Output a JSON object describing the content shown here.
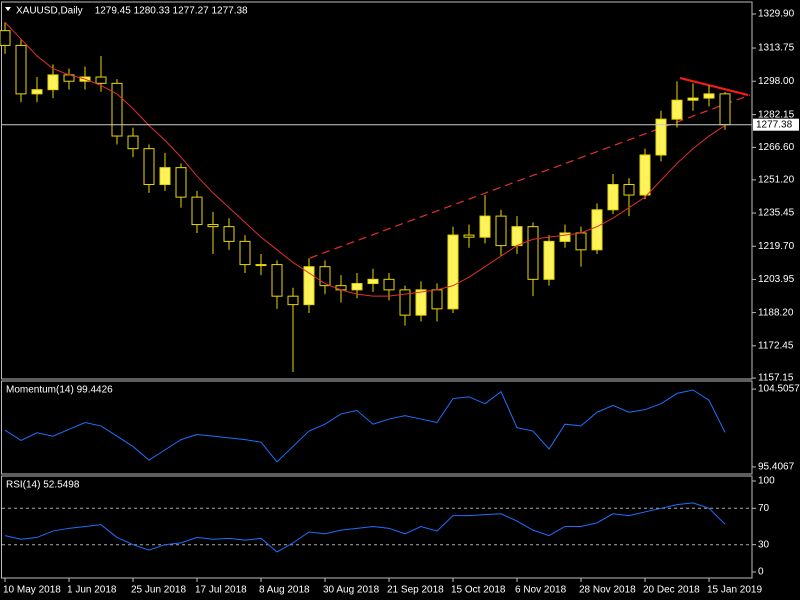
{
  "chart_data": [
    {
      "type": "candlestick",
      "title": "XAUUSD,Daily",
      "subtitle": "1279.45 1280.33 1277.27 1277.38",
      "categories": [
        "10 May 2018",
        null,
        null,
        null,
        "1 Jun 2018",
        null,
        null,
        null,
        "25 Jun 2018",
        null,
        null,
        null,
        "17 Jul 2018",
        null,
        null,
        null,
        "8 Aug 2018",
        null,
        null,
        null,
        "30 Aug 2018",
        null,
        null,
        null,
        "21 Sep 2018",
        null,
        null,
        null,
        "15 Oct 2018",
        null,
        null,
        null,
        "6 Nov 2018",
        null,
        null,
        null,
        "28 Nov 2018",
        null,
        null,
        null,
        "20 Dec 2018",
        null,
        null,
        null,
        "15 Jan 2019",
        null
      ],
      "open": [
        1322,
        1315,
        1292,
        1294,
        1301,
        1298,
        1300,
        1297,
        1272,
        1266,
        1249,
        1257,
        1243,
        1230,
        1229,
        1222,
        1211,
        1211,
        1196,
        1192,
        1210,
        1201,
        1199,
        1202,
        1204,
        1199,
        1187,
        1199,
        1190,
        1225,
        1224,
        1234,
        1220,
        1229,
        1204,
        1222,
        1226,
        1218,
        1237,
        1249,
        1244,
        1263,
        1280,
        1289,
        1290,
        1292
      ],
      "high": [
        1326,
        1318,
        1300,
        1306,
        1304,
        1305,
        1310,
        1299,
        1276,
        1268,
        1264,
        1259,
        1246,
        1236,
        1233,
        1225,
        1216,
        1213,
        1200,
        1214,
        1213,
        1206,
        1207,
        1209,
        1207,
        1201,
        1203,
        1202,
        1229,
        1230,
        1244,
        1237,
        1234,
        1231,
        1225,
        1230,
        1229,
        1240,
        1254,
        1252,
        1266,
        1284,
        1298,
        1297,
        1296,
        1293
      ],
      "low": [
        1311,
        1288,
        1288,
        1290,
        1294,
        1294,
        1293,
        1268,
        1262,
        1245,
        1246,
        1238,
        1226,
        1216,
        1218,
        1207,
        1206,
        1190,
        1160,
        1188,
        1197,
        1193,
        1195,
        1198,
        1194,
        1182,
        1184,
        1184,
        1188,
        1219,
        1221,
        1215,
        1216,
        1196,
        1201,
        1219,
        1210,
        1216,
        1235,
        1234,
        1242,
        1260,
        1276,
        1284,
        1286,
        1275
      ],
      "close": [
        1315,
        1292,
        1294,
        1301,
        1298,
        1300,
        1297,
        1272,
        1266,
        1249,
        1257,
        1243,
        1230,
        1229,
        1222,
        1211,
        1211,
        1196,
        1192,
        1210,
        1201,
        1199,
        1202,
        1204,
        1199,
        1187,
        1199,
        1190,
        1225,
        1224,
        1234,
        1220,
        1229,
        1204,
        1222,
        1226,
        1218,
        1237,
        1249,
        1244,
        1263,
        1280,
        1289,
        1290,
        1292,
        1277.38
      ],
      "up_color": "#fff35c",
      "down_color": "#000000",
      "wick_color": "#e8d800",
      "series": [
        {
          "color": "#e0302f",
          "values": [
            1326,
            1318,
            1310,
            1304,
            1301,
            1299,
            1296,
            1292,
            1285,
            1277,
            1270,
            1262,
            1253,
            1245,
            1238,
            1231,
            1224,
            1218,
            1212,
            1207,
            1202,
            1199,
            1197,
            1196,
            1196,
            1197,
            1198,
            1199,
            1201,
            1205,
            1210,
            1215,
            1220,
            1223,
            1224,
            1225,
            1226,
            1229,
            1233,
            1238,
            1243,
            1251,
            1259,
            1266,
            1272,
            1277
          ]
        }
      ],
      "last_price": 1277.38,
      "ylim": [
        1156.7,
        1335.6
      ],
      "yticks": [
        {
          "value": 1329.9,
          "label": "1329.90"
        },
        {
          "value": 1313.75,
          "label": "1313.75"
        },
        {
          "value": 1298,
          "label": "1298.00"
        },
        {
          "value": 1282.15,
          "label": "1282.15"
        },
        {
          "value": 1266.6,
          "label": "1266.60"
        },
        {
          "value": 1251.2,
          "label": "1251.20"
        },
        {
          "value": 1235.45,
          "label": "1235.45"
        },
        {
          "value": 1219.7,
          "label": "1219.70"
        },
        {
          "value": 1203.95,
          "label": "1203.95"
        },
        {
          "value": 1188.2,
          "label": "1188.20"
        },
        {
          "value": 1172.45,
          "label": "1172.45"
        },
        {
          "value": 1157.15,
          "label": "1157.15"
        }
      ]
    },
    {
      "type": "line",
      "title": "Momentum(14) 99.4426",
      "series": [
        {
          "color": "#1e6fff",
          "values": [
            99.7,
            98.5,
            99.4,
            99.0,
            99.8,
            100.6,
            100.2,
            99.0,
            97.8,
            96.2,
            97.4,
            98.6,
            99.2,
            99.0,
            98.8,
            98.6,
            98.3,
            96.0,
            97.8,
            99.6,
            100.4,
            101.6,
            102.0,
            100.4,
            101.0,
            101.4,
            101.0,
            100.6,
            103.4,
            103.6,
            102.8,
            104.2,
            100.0,
            99.6,
            97.5,
            100.4,
            100.2,
            101.8,
            102.6,
            101.8,
            102.1,
            102.8,
            104.0,
            104.4,
            103.2,
            99.4426
          ]
        }
      ],
      "ylim": [
        94.58,
        105.45
      ],
      "yticks": [
        104.5057,
        95.4067
      ]
    },
    {
      "type": "line",
      "title": "RSI(14) 52.5498",
      "series": [
        {
          "color": "#1e6fff",
          "values": [
            40,
            36,
            38,
            45,
            48,
            50,
            52,
            38,
            30,
            24,
            30,
            32,
            38,
            36,
            37,
            35,
            37,
            22,
            32,
            44,
            42,
            46,
            48,
            50,
            48,
            42,
            50,
            45,
            62,
            62,
            63,
            64,
            56,
            46,
            40,
            50,
            50,
            54,
            64,
            62,
            66,
            70,
            74,
            76,
            70,
            52.5498
          ]
        }
      ],
      "levels": [
        30,
        70
      ],
      "ylim": [
        -6.6,
        105.5
      ],
      "yticks": [
        100,
        70,
        30,
        0
      ]
    }
  ]
}
